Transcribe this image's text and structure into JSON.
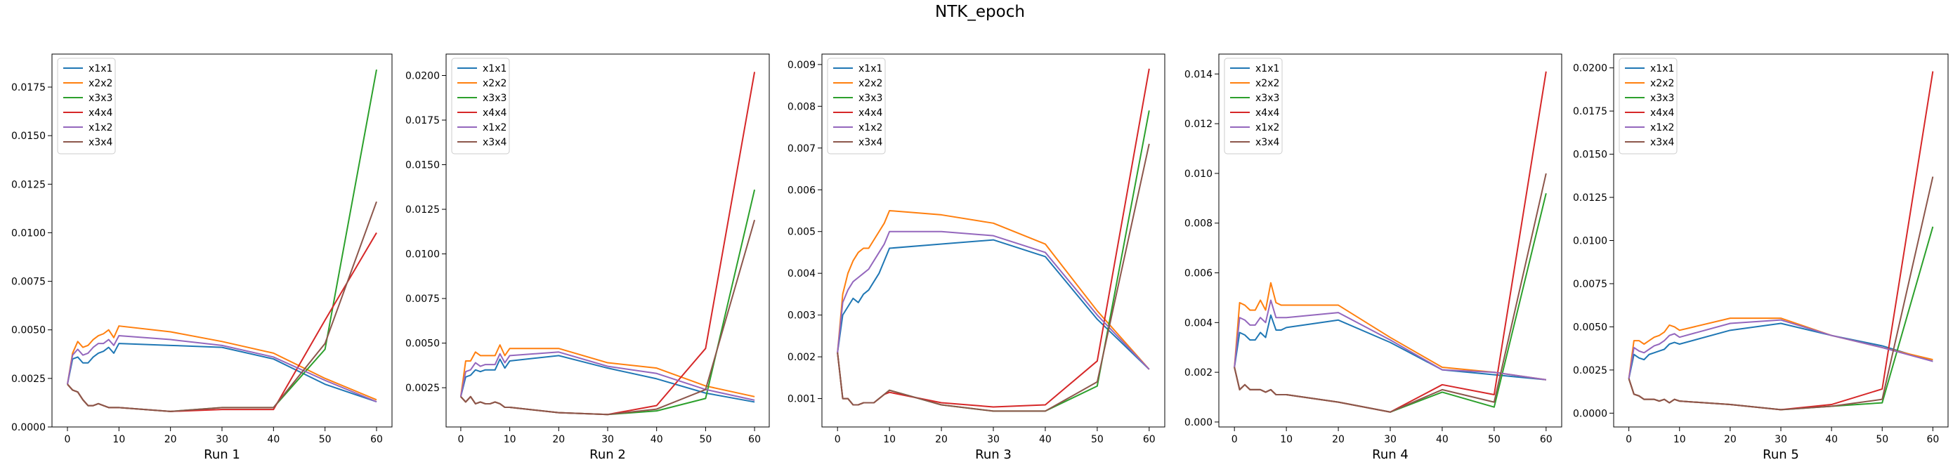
{
  "figure": {
    "title": "NTK_epoch",
    "colors": {
      "x1x1": "#1f77b4",
      "x2x2": "#ff7f0e",
      "x3x3": "#2ca02c",
      "x4x4": "#d62728",
      "x1x2": "#9467bd",
      "x3x4": "#8c564b"
    }
  },
  "chart_data": [
    {
      "type": "line",
      "xlabel": "Run 1",
      "xlim": [
        -3,
        63
      ],
      "ylim": [
        0,
        0.0192
      ],
      "xticks": [
        0,
        10,
        20,
        30,
        40,
        50,
        60
      ],
      "yticks": [
        0.0,
        0.0025,
        0.005,
        0.0075,
        0.01,
        0.0125,
        0.015,
        0.0175
      ],
      "ytick_labels": [
        "0.0000",
        "0.0025",
        "0.0050",
        "0.0075",
        "0.0100",
        "0.0125",
        "0.0150",
        "0.0175"
      ],
      "legend": "top-left",
      "x": [
        0,
        1,
        2,
        3,
        4,
        5,
        6,
        7,
        8,
        9,
        10,
        20,
        30,
        40,
        50,
        60
      ],
      "series": [
        {
          "name": "x1x1",
          "values": [
            0.0022,
            0.0035,
            0.0036,
            0.0033,
            0.0033,
            0.0036,
            0.0038,
            0.0039,
            0.0041,
            0.0038,
            0.0043,
            0.0042,
            0.0041,
            0.0035,
            0.0022,
            0.0013
          ]
        },
        {
          "name": "x2x2",
          "values": [
            0.0022,
            0.0038,
            0.0044,
            0.0041,
            0.0042,
            0.0045,
            0.0047,
            0.0048,
            0.005,
            0.0046,
            0.0052,
            0.0049,
            0.0044,
            0.0038,
            0.0025,
            0.0014
          ]
        },
        {
          "name": "x3x3",
          "values": [
            0.0022,
            0.0019,
            0.0018,
            0.0014,
            0.0011,
            0.0011,
            0.0012,
            0.0011,
            0.001,
            0.001,
            0.001,
            0.0008,
            0.001,
            0.001,
            0.004,
            0.0184
          ]
        },
        {
          "name": "x4x4",
          "values": [
            0.0022,
            0.0019,
            0.0018,
            0.0014,
            0.0011,
            0.0011,
            0.0012,
            0.0011,
            0.001,
            0.001,
            0.001,
            0.0008,
            0.0009,
            0.0009,
            0.0055,
            0.01
          ]
        },
        {
          "name": "x1x2",
          "values": [
            0.0022,
            0.0037,
            0.004,
            0.0037,
            0.0038,
            0.0041,
            0.0043,
            0.0043,
            0.0045,
            0.0042,
            0.0047,
            0.0045,
            0.0042,
            0.0036,
            0.0024,
            0.0013
          ]
        },
        {
          "name": "x3x4",
          "values": [
            0.0022,
            0.0019,
            0.0018,
            0.0014,
            0.0011,
            0.0011,
            0.0012,
            0.0011,
            0.001,
            0.001,
            0.001,
            0.0008,
            0.001,
            0.001,
            0.0043,
            0.0116
          ]
        }
      ]
    },
    {
      "type": "line",
      "xlabel": "Run 2",
      "xlim": [
        -3,
        63
      ],
      "ylim": [
        0.0003,
        0.0212
      ],
      "xticks": [
        0,
        10,
        20,
        30,
        40,
        50,
        60
      ],
      "yticks": [
        0.0025,
        0.005,
        0.0075,
        0.01,
        0.0125,
        0.015,
        0.0175,
        0.02
      ],
      "ytick_labels": [
        "0.0025",
        "0.0050",
        "0.0075",
        "0.0100",
        "0.0125",
        "0.0150",
        "0.0175",
        "0.0200"
      ],
      "legend": "top-left",
      "x": [
        0,
        1,
        2,
        3,
        4,
        5,
        6,
        7,
        8,
        9,
        10,
        20,
        30,
        40,
        50,
        60
      ],
      "series": [
        {
          "name": "x1x1",
          "values": [
            0.002,
            0.0031,
            0.0032,
            0.0035,
            0.0034,
            0.0035,
            0.0035,
            0.0035,
            0.0041,
            0.0036,
            0.004,
            0.0043,
            0.0036,
            0.003,
            0.0022,
            0.0017
          ]
        },
        {
          "name": "x2x2",
          "values": [
            0.002,
            0.004,
            0.004,
            0.0045,
            0.0043,
            0.0043,
            0.0043,
            0.0043,
            0.0049,
            0.0043,
            0.0047,
            0.0047,
            0.0039,
            0.0036,
            0.0026,
            0.002
          ]
        },
        {
          "name": "x3x3",
          "values": [
            0.002,
            0.0017,
            0.002,
            0.0016,
            0.0017,
            0.0016,
            0.0016,
            0.0017,
            0.0016,
            0.0014,
            0.0014,
            0.0011,
            0.001,
            0.0012,
            0.0019,
            0.0136
          ]
        },
        {
          "name": "x4x4",
          "values": [
            0.002,
            0.0017,
            0.002,
            0.0016,
            0.0017,
            0.0016,
            0.0016,
            0.0017,
            0.0016,
            0.0014,
            0.0014,
            0.0011,
            0.001,
            0.0015,
            0.0047,
            0.0202
          ]
        },
        {
          "name": "x1x2",
          "values": [
            0.002,
            0.0034,
            0.0035,
            0.0039,
            0.0037,
            0.0038,
            0.0038,
            0.0038,
            0.0044,
            0.0039,
            0.0043,
            0.0045,
            0.0037,
            0.0033,
            0.0024,
            0.0018
          ]
        },
        {
          "name": "x3x4",
          "values": [
            0.002,
            0.0017,
            0.002,
            0.0016,
            0.0017,
            0.0016,
            0.0016,
            0.0017,
            0.0016,
            0.0014,
            0.0014,
            0.0011,
            0.001,
            0.0013,
            0.0024,
            0.0119
          ]
        }
      ]
    },
    {
      "type": "line",
      "xlabel": "Run 3",
      "xlim": [
        -3,
        63
      ],
      "ylim": [
        0.00032,
        0.00925
      ],
      "xticks": [
        0,
        10,
        20,
        30,
        40,
        50,
        60
      ],
      "yticks": [
        0.001,
        0.002,
        0.003,
        0.004,
        0.005,
        0.006,
        0.007,
        0.008,
        0.009
      ],
      "ytick_labels": [
        "0.001",
        "0.002",
        "0.003",
        "0.004",
        "0.005",
        "0.006",
        "0.007",
        "0.008",
        "0.009"
      ],
      "legend": "top-left",
      "x": [
        0,
        1,
        2,
        3,
        4,
        5,
        6,
        7,
        8,
        9,
        10,
        20,
        30,
        40,
        50,
        60
      ],
      "series": [
        {
          "name": "x1x1",
          "values": [
            0.0021,
            0.003,
            0.0032,
            0.0034,
            0.0033,
            0.0035,
            0.0036,
            0.0038,
            0.004,
            0.0043,
            0.0046,
            0.0047,
            0.0048,
            0.0044,
            0.0029,
            0.0017
          ]
        },
        {
          "name": "x2x2",
          "values": [
            0.0021,
            0.0035,
            0.004,
            0.0043,
            0.0045,
            0.0046,
            0.0046,
            0.0048,
            0.005,
            0.0052,
            0.0055,
            0.0054,
            0.0052,
            0.0047,
            0.0031,
            0.0017
          ]
        },
        {
          "name": "x3x3",
          "values": [
            0.0021,
            0.001,
            0.001,
            0.00085,
            0.00085,
            0.0009,
            0.0009,
            0.0009,
            0.001,
            0.0011,
            0.0012,
            0.00085,
            0.0007,
            0.0007,
            0.0013,
            0.0079
          ]
        },
        {
          "name": "x4x4",
          "values": [
            0.0021,
            0.001,
            0.001,
            0.00085,
            0.00085,
            0.0009,
            0.0009,
            0.0009,
            0.001,
            0.0011,
            0.00115,
            0.0009,
            0.0008,
            0.00085,
            0.0019,
            0.0089
          ]
        },
        {
          "name": "x1x2",
          "values": [
            0.0021,
            0.0033,
            0.0036,
            0.0038,
            0.0039,
            0.004,
            0.0041,
            0.0043,
            0.0045,
            0.0047,
            0.005,
            0.005,
            0.0049,
            0.0045,
            0.003,
            0.0017
          ]
        },
        {
          "name": "x3x4",
          "values": [
            0.0021,
            0.001,
            0.001,
            0.00085,
            0.00085,
            0.0009,
            0.0009,
            0.0009,
            0.001,
            0.0011,
            0.0012,
            0.00085,
            0.0007,
            0.0007,
            0.0014,
            0.0071
          ]
        }
      ]
    },
    {
      "type": "line",
      "xlabel": "Run 4",
      "xlim": [
        -3,
        63
      ],
      "ylim": [
        -0.0002,
        0.0148
      ],
      "xticks": [
        0,
        10,
        20,
        30,
        40,
        50,
        60
      ],
      "yticks": [
        0.0,
        0.002,
        0.004,
        0.006,
        0.008,
        0.01,
        0.012,
        0.014
      ],
      "ytick_labels": [
        "0.000",
        "0.002",
        "0.004",
        "0.006",
        "0.008",
        "0.010",
        "0.012",
        "0.014"
      ],
      "legend": "top-left",
      "x": [
        0,
        1,
        2,
        3,
        4,
        5,
        6,
        7,
        8,
        9,
        10,
        20,
        30,
        40,
        50,
        60
      ],
      "series": [
        {
          "name": "x1x1",
          "values": [
            0.0022,
            0.0036,
            0.0035,
            0.0033,
            0.0033,
            0.0036,
            0.0034,
            0.0043,
            0.0037,
            0.0037,
            0.0038,
            0.0041,
            0.0032,
            0.0021,
            0.0019,
            0.0017
          ]
        },
        {
          "name": "x2x2",
          "values": [
            0.0022,
            0.0048,
            0.0047,
            0.0045,
            0.0045,
            0.0049,
            0.0045,
            0.0056,
            0.0048,
            0.0047,
            0.0047,
            0.0047,
            0.0034,
            0.0022,
            0.002,
            0.0017
          ]
        },
        {
          "name": "x3x3",
          "values": [
            0.0022,
            0.0013,
            0.0015,
            0.0013,
            0.0013,
            0.0013,
            0.0012,
            0.0013,
            0.0011,
            0.0011,
            0.0011,
            0.0008,
            0.0004,
            0.0012,
            0.0006,
            0.0092
          ]
        },
        {
          "name": "x4x4",
          "values": [
            0.0022,
            0.0013,
            0.0015,
            0.0013,
            0.0013,
            0.0013,
            0.0012,
            0.0013,
            0.0011,
            0.0011,
            0.0011,
            0.0008,
            0.0004,
            0.0015,
            0.0011,
            0.0141
          ]
        },
        {
          "name": "x1x2",
          "values": [
            0.0022,
            0.0042,
            0.0041,
            0.0039,
            0.0039,
            0.0042,
            0.004,
            0.0049,
            0.0042,
            0.0042,
            0.0042,
            0.0044,
            0.0033,
            0.0021,
            0.002,
            0.0017
          ]
        },
        {
          "name": "x3x4",
          "values": [
            0.0022,
            0.0013,
            0.0015,
            0.0013,
            0.0013,
            0.0013,
            0.0012,
            0.0013,
            0.0011,
            0.0011,
            0.0011,
            0.0008,
            0.0004,
            0.0013,
            0.0008,
            0.01
          ]
        }
      ]
    },
    {
      "type": "line",
      "xlabel": "Run 5",
      "xlim": [
        -3,
        63
      ],
      "ylim": [
        -0.0008,
        0.0208
      ],
      "xticks": [
        0,
        10,
        20,
        30,
        40,
        50,
        60
      ],
      "yticks": [
        0.0,
        0.0025,
        0.005,
        0.0075,
        0.01,
        0.0125,
        0.015,
        0.0175,
        0.02
      ],
      "ytick_labels": [
        "0.0000",
        "0.0025",
        "0.0050",
        "0.0075",
        "0.0100",
        "0.0125",
        "0.0150",
        "0.0175",
        "0.0200"
      ],
      "legend": "top-left",
      "x": [
        0,
        1,
        2,
        3,
        4,
        5,
        6,
        7,
        8,
        9,
        10,
        20,
        30,
        40,
        50,
        60
      ],
      "series": [
        {
          "name": "x1x1",
          "values": [
            0.002,
            0.0034,
            0.0032,
            0.0031,
            0.0034,
            0.0035,
            0.0036,
            0.0037,
            0.004,
            0.0041,
            0.004,
            0.0048,
            0.0052,
            0.0045,
            0.0039,
            0.003
          ]
        },
        {
          "name": "x2x2",
          "values": [
            0.002,
            0.0042,
            0.0042,
            0.004,
            0.0042,
            0.0044,
            0.0045,
            0.0047,
            0.0051,
            0.005,
            0.0048,
            0.0055,
            0.0055,
            0.0045,
            0.0038,
            0.0031
          ]
        },
        {
          "name": "x3x3",
          "values": [
            0.002,
            0.0011,
            0.001,
            0.0008,
            0.0008,
            0.0008,
            0.0007,
            0.0008,
            0.0006,
            0.0008,
            0.0007,
            0.0005,
            0.0002,
            0.0004,
            0.0006,
            0.0108
          ]
        },
        {
          "name": "x4x4",
          "values": [
            0.002,
            0.0011,
            0.001,
            0.0008,
            0.0008,
            0.0008,
            0.0007,
            0.0008,
            0.0006,
            0.0008,
            0.0007,
            0.0005,
            0.0002,
            0.0005,
            0.0014,
            0.0198
          ]
        },
        {
          "name": "x1x2",
          "values": [
            0.002,
            0.0038,
            0.0036,
            0.0035,
            0.0037,
            0.0039,
            0.004,
            0.0042,
            0.0045,
            0.0046,
            0.0044,
            0.0052,
            0.0054,
            0.0045,
            0.0038,
            0.003
          ]
        },
        {
          "name": "x3x4",
          "values": [
            0.002,
            0.0011,
            0.001,
            0.0008,
            0.0008,
            0.0008,
            0.0007,
            0.0008,
            0.0006,
            0.0008,
            0.0007,
            0.0005,
            0.0002,
            0.0004,
            0.0008,
            0.0137
          ]
        }
      ]
    }
  ]
}
